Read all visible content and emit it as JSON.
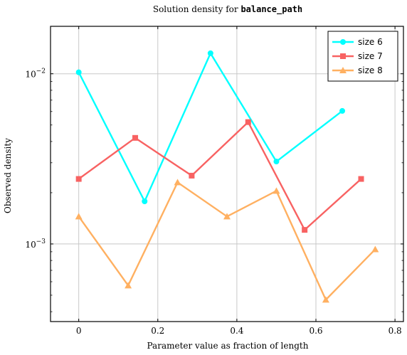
{
  "chart_data": {
    "type": "line",
    "title_prefix": "Solution density for ",
    "title_code": "balance_path",
    "xlabel": "Parameter value as fraction of length",
    "ylabel": "Observed density",
    "xlim": [
      -0.0714,
      0.8214
    ],
    "ylim": [
      0.00035,
      0.019
    ],
    "yscale": "log",
    "grid": true,
    "legend_position": "top-right",
    "x_ticks": [
      {
        "value": 0,
        "label": "0"
      },
      {
        "value": 0.2,
        "label": "0.2"
      },
      {
        "value": 0.4,
        "label": "0.4"
      },
      {
        "value": 0.6,
        "label": "0.6"
      },
      {
        "value": 0.8,
        "label": "0.8"
      }
    ],
    "y_ticks": [
      {
        "value": 0.01,
        "base": "10",
        "exp": "−2"
      },
      {
        "value": 0.001,
        "base": "10",
        "exp": "−3"
      }
    ],
    "series": [
      {
        "name": "size 6",
        "color": "#00ffff",
        "marker": "circle",
        "x": [
          0,
          0.16667,
          0.33333,
          0.5,
          0.66667
        ],
        "y": [
          0.0102,
          0.00178,
          0.0132,
          0.00305,
          0.00605
        ]
      },
      {
        "name": "size 7",
        "color": "#f86262",
        "marker": "square",
        "x": [
          0,
          0.14286,
          0.28571,
          0.42857,
          0.57143,
          0.71429
        ],
        "y": [
          0.00241,
          0.0042,
          0.00252,
          0.0052,
          0.00121,
          0.00241
        ]
      },
      {
        "name": "size 8",
        "color": "#ffb061",
        "marker": "triangle",
        "x": [
          0,
          0.125,
          0.25,
          0.375,
          0.5,
          0.625,
          0.75
        ],
        "y": [
          0.00145,
          0.00057,
          0.0023,
          0.00145,
          0.00205,
          0.00047,
          0.00093
        ]
      }
    ]
  }
}
